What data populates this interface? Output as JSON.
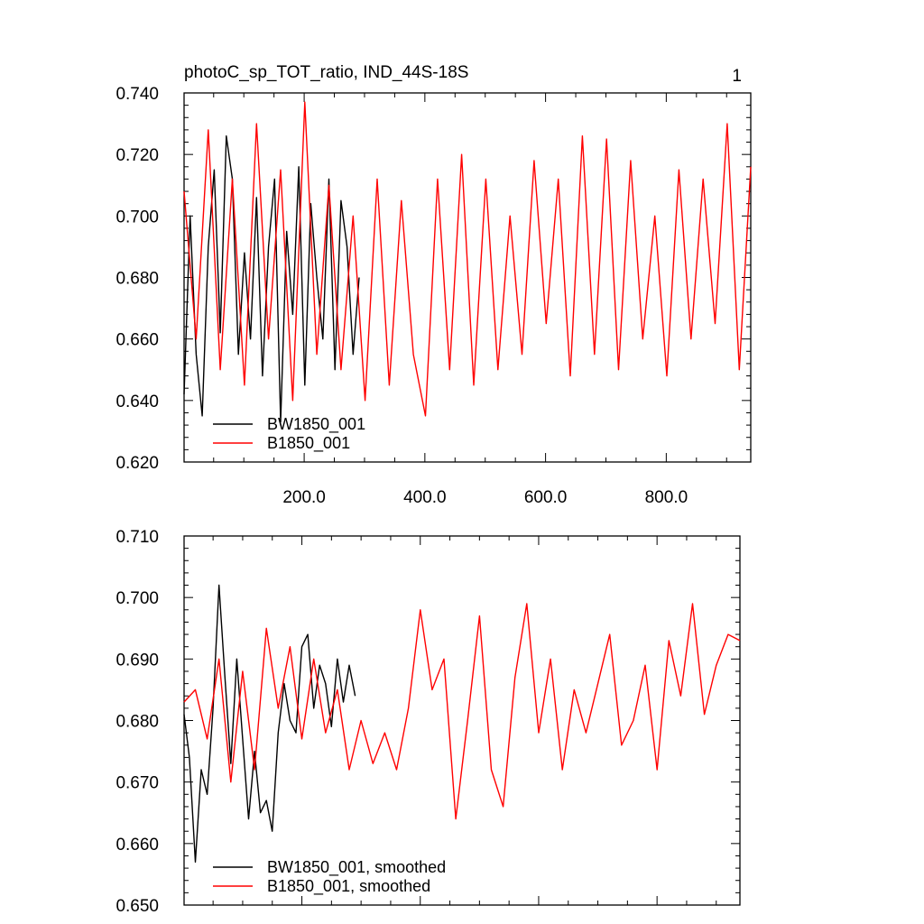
{
  "page_number": "1",
  "colors": {
    "series_black": "#000000",
    "series_red": "#ff0000",
    "axes": "#000000",
    "background": "#ffffff"
  },
  "chart_data": [
    {
      "type": "line",
      "title": "photoC_sp_TOT_ratio, IND_44S-18S",
      "xlabel": "",
      "ylabel": "",
      "xlim": [
        1,
        940
      ],
      "ylim": [
        0.62,
        0.74
      ],
      "x_ticks": [
        200,
        400,
        600,
        800
      ],
      "x_tick_labels": [
        "200.0",
        "400.0",
        "600.0",
        "800.0"
      ],
      "y_ticks": [
        0.62,
        0.64,
        0.66,
        0.68,
        0.7,
        0.72,
        0.74
      ],
      "y_tick_labels": [
        "0.620",
        "0.640",
        "0.660",
        "0.680",
        "0.700",
        "0.720",
        "0.740"
      ],
      "legend_position": "bottom-left",
      "grid": false,
      "series": [
        {
          "name": "BW1850_001",
          "color": "#000000",
          "x": [
            1,
            11,
            21,
            31,
            41,
            51,
            61,
            71,
            81,
            91,
            101,
            111,
            121,
            131,
            141,
            151,
            161,
            171,
            181,
            191,
            201,
            211,
            221,
            231,
            241,
            251,
            261,
            271,
            281,
            291
          ],
          "values": [
            0.642,
            0.7,
            0.655,
            0.635,
            0.69,
            0.715,
            0.662,
            0.726,
            0.712,
            0.655,
            0.688,
            0.66,
            0.706,
            0.648,
            0.69,
            0.712,
            0.633,
            0.695,
            0.668,
            0.716,
            0.645,
            0.704,
            0.68,
            0.66,
            0.712,
            0.65,
            0.705,
            0.69,
            0.655,
            0.68
          ]
        },
        {
          "name": "B1850_001",
          "color": "#ff0000",
          "x": [
            1,
            21,
            41,
            61,
            81,
            101,
            121,
            141,
            161,
            181,
            201,
            221,
            241,
            261,
            281,
            301,
            321,
            341,
            361,
            381,
            401,
            421,
            441,
            461,
            481,
            501,
            521,
            541,
            561,
            581,
            601,
            621,
            641,
            661,
            681,
            701,
            721,
            741,
            761,
            781,
            801,
            821,
            841,
            861,
            881,
            901,
            921,
            940
          ],
          "values": [
            0.708,
            0.66,
            0.728,
            0.65,
            0.712,
            0.645,
            0.73,
            0.66,
            0.715,
            0.64,
            0.737,
            0.655,
            0.71,
            0.65,
            0.7,
            0.64,
            0.712,
            0.645,
            0.705,
            0.655,
            0.635,
            0.712,
            0.65,
            0.72,
            0.645,
            0.712,
            0.65,
            0.7,
            0.655,
            0.718,
            0.665,
            0.712,
            0.648,
            0.726,
            0.655,
            0.725,
            0.65,
            0.718,
            0.66,
            0.7,
            0.648,
            0.715,
            0.66,
            0.712,
            0.665,
            0.73,
            0.65,
            0.716
          ]
        }
      ]
    },
    {
      "type": "line",
      "title": "",
      "xlabel": "",
      "ylabel": "",
      "xlim": [
        1,
        940
      ],
      "ylim": [
        0.65,
        0.71
      ],
      "y_ticks": [
        0.65,
        0.66,
        0.67,
        0.68,
        0.69,
        0.7,
        0.71
      ],
      "y_tick_labels": [
        "0.650",
        "0.660",
        "0.670",
        "0.680",
        "0.690",
        "0.700",
        "0.710"
      ],
      "legend_position": "bottom-left",
      "grid": false,
      "series": [
        {
          "name": "BW1850_001, smoothed",
          "color": "#000000",
          "x": [
            1,
            10,
            20,
            30,
            40,
            50,
            60,
            70,
            80,
            90,
            100,
            110,
            120,
            130,
            140,
            150,
            160,
            170,
            180,
            190,
            200,
            210,
            220,
            230,
            240,
            250,
            260,
            270,
            280,
            290
          ],
          "values": [
            0.681,
            0.674,
            0.657,
            0.672,
            0.668,
            0.682,
            0.702,
            0.687,
            0.673,
            0.69,
            0.677,
            0.664,
            0.675,
            0.665,
            0.667,
            0.662,
            0.678,
            0.686,
            0.68,
            0.678,
            0.692,
            0.694,
            0.682,
            0.689,
            0.686,
            0.679,
            0.69,
            0.683,
            0.689,
            0.684
          ]
        },
        {
          "name": "B1850_001, smoothed",
          "color": "#ff0000",
          "x": [
            1,
            20,
            40,
            60,
            80,
            100,
            120,
            140,
            160,
            180,
            200,
            220,
            240,
            260,
            280,
            300,
            320,
            340,
            360,
            380,
            400,
            420,
            440,
            460,
            480,
            500,
            520,
            540,
            560,
            580,
            600,
            620,
            640,
            660,
            680,
            700,
            720,
            740,
            760,
            780,
            800,
            820,
            840,
            860,
            880,
            900,
            920,
            940
          ],
          "values": [
            0.683,
            0.685,
            0.677,
            0.69,
            0.67,
            0.688,
            0.672,
            0.695,
            0.682,
            0.692,
            0.677,
            0.69,
            0.678,
            0.685,
            0.672,
            0.68,
            0.673,
            0.678,
            0.672,
            0.682,
            0.698,
            0.685,
            0.69,
            0.664,
            0.68,
            0.697,
            0.672,
            0.666,
            0.687,
            0.699,
            0.678,
            0.69,
            0.672,
            0.685,
            0.678,
            0.686,
            0.694,
            0.676,
            0.68,
            0.689,
            0.672,
            0.693,
            0.684,
            0.699,
            0.681,
            0.689,
            0.694,
            0.693
          ]
        }
      ]
    }
  ]
}
